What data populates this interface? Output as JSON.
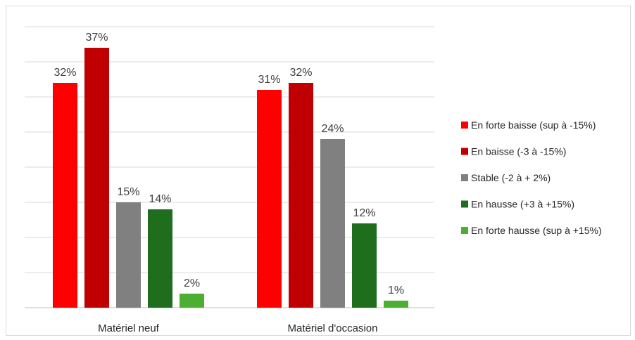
{
  "chart_data": {
    "type": "bar",
    "title": "",
    "xlabel": "",
    "ylabel": "",
    "ylim": [
      0,
      40
    ],
    "grid": true,
    "legend_position": "right",
    "categories": [
      "Matériel neuf",
      "Matériel d'occasion"
    ],
    "series": [
      {
        "name": "En forte baisse (sup à -15%)",
        "color": "#ff0000",
        "values": [
          32,
          31
        ],
        "labels": [
          "32%",
          "31%"
        ]
      },
      {
        "name": "En baisse (-3 à -15%)",
        "color": "#c00000",
        "values": [
          37,
          32
        ],
        "labels": [
          "37%",
          "32%"
        ]
      },
      {
        "name": "Stable (-2 à + 2%)",
        "color": "#808080",
        "values": [
          15,
          24
        ],
        "labels": [
          "15%",
          "24%"
        ]
      },
      {
        "name": "En hausse (+3 à +15%)",
        "color": "#1e6e1e",
        "values": [
          14,
          12
        ],
        "labels": [
          "14%",
          "12%"
        ]
      },
      {
        "name": "En forte hausse (sup à +15%)",
        "color": "#4caf32",
        "values": [
          2,
          1
        ],
        "labels": [
          "2%",
          "1%"
        ]
      }
    ]
  }
}
